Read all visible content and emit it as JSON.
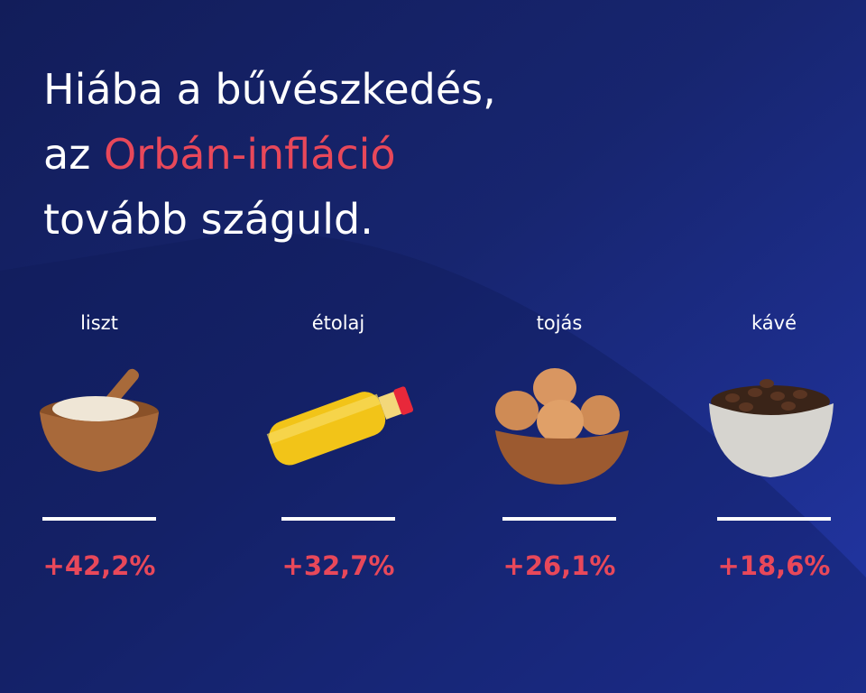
{
  "headline": {
    "line1": "Hiába a bűvészkedés,",
    "line2_start": "az",
    "line2_highlight": "Orbán-infláció",
    "line3": "tovább száguld."
  },
  "items": [
    {
      "label": "liszt",
      "change": "+42,2%"
    },
    {
      "label": "étolaj",
      "change": "+32,7%"
    },
    {
      "label": "tojás",
      "change": "+26,1%"
    },
    {
      "label": "kávé",
      "change": "+18,6%"
    }
  ]
}
